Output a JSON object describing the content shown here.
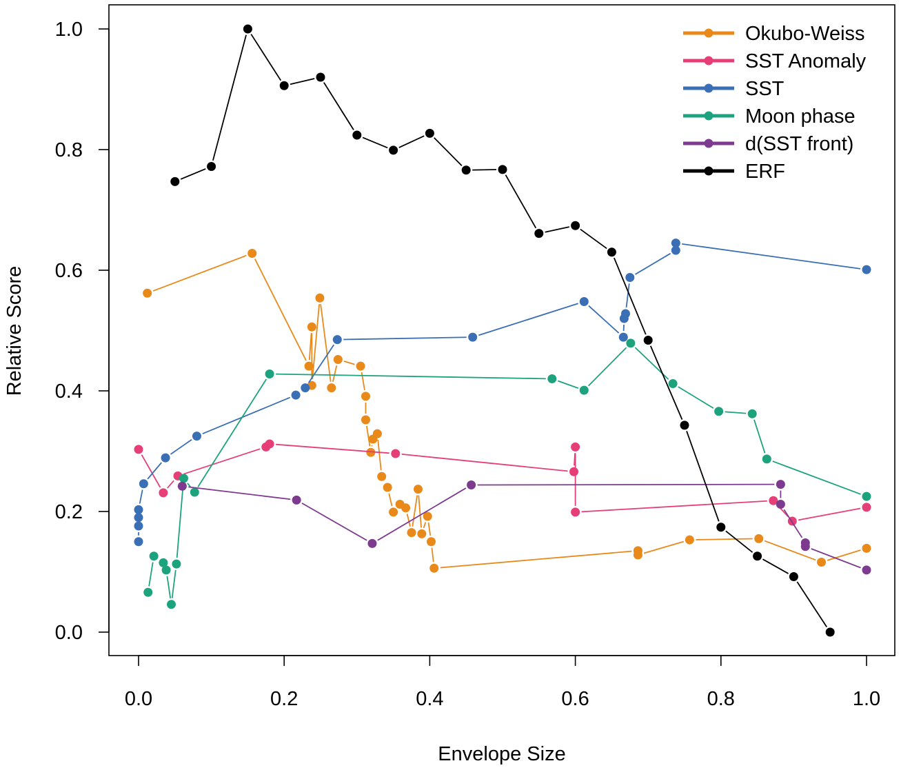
{
  "chart_data": {
    "type": "line",
    "title": "",
    "xlabel": "Envelope Size",
    "ylabel": "Relative Score",
    "xlim": [
      0.0,
      1.0
    ],
    "ylim": [
      0.0,
      1.0
    ],
    "xticks": [
      "0.0",
      "0.2",
      "0.4",
      "0.6",
      "0.8",
      "1.0"
    ],
    "yticks": [
      "0.0",
      "0.2",
      "0.4",
      "0.6",
      "0.8",
      "1.0"
    ],
    "legend_position": "top-right",
    "grid": false,
    "series": [
      {
        "name": "Okubo-Weiss",
        "color": "#E8891A",
        "points": [
          [
            0.012,
            0.562
          ],
          [
            0.156,
            0.628
          ],
          [
            0.234,
            0.441
          ],
          [
            0.238,
            0.506
          ],
          [
            0.238,
            0.409
          ],
          [
            0.249,
            0.554
          ],
          [
            0.265,
            0.405
          ],
          [
            0.274,
            0.452
          ],
          [
            0.305,
            0.441
          ],
          [
            0.312,
            0.391
          ],
          [
            0.312,
            0.352
          ],
          [
            0.319,
            0.298
          ],
          [
            0.322,
            0.32
          ],
          [
            0.328,
            0.329
          ],
          [
            0.334,
            0.258
          ],
          [
            0.342,
            0.24
          ],
          [
            0.35,
            0.199
          ],
          [
            0.359,
            0.212
          ],
          [
            0.367,
            0.206
          ],
          [
            0.375,
            0.165
          ],
          [
            0.384,
            0.237
          ],
          [
            0.389,
            0.163
          ],
          [
            0.397,
            0.192
          ],
          [
            0.402,
            0.15
          ],
          [
            0.406,
            0.106
          ],
          [
            0.686,
            0.135
          ],
          [
            0.686,
            0.128
          ],
          [
            0.757,
            0.153
          ],
          [
            0.852,
            0.155
          ],
          [
            0.938,
            0.116
          ],
          [
            1.0,
            0.139
          ]
        ]
      },
      {
        "name": "SST Anomaly",
        "color": "#E63E77",
        "points": [
          [
            0.0,
            0.303
          ],
          [
            0.034,
            0.231
          ],
          [
            0.054,
            0.259
          ],
          [
            0.175,
            0.307
          ],
          [
            0.18,
            0.312
          ],
          [
            0.353,
            0.296
          ],
          [
            0.598,
            0.266
          ],
          [
            0.6,
            0.307
          ],
          [
            0.6,
            0.199
          ],
          [
            0.872,
            0.218
          ],
          [
            0.898,
            0.184
          ],
          [
            1.0,
            0.207
          ]
        ]
      },
      {
        "name": "SST",
        "color": "#3A6EB5",
        "points": [
          [
            0.0,
            0.15
          ],
          [
            0.0,
            0.176
          ],
          [
            0.0,
            0.19
          ],
          [
            0.0,
            0.203
          ],
          [
            0.007,
            0.246
          ],
          [
            0.037,
            0.289
          ],
          [
            0.08,
            0.325
          ],
          [
            0.216,
            0.393
          ],
          [
            0.229,
            0.405
          ],
          [
            0.273,
            0.485
          ],
          [
            0.459,
            0.489
          ],
          [
            0.612,
            0.548
          ],
          [
            0.666,
            0.489
          ],
          [
            0.667,
            0.52
          ],
          [
            0.669,
            0.528
          ],
          [
            0.675,
            0.588
          ],
          [
            0.738,
            0.633
          ],
          [
            0.738,
            0.645
          ],
          [
            1.0,
            0.601
          ]
        ]
      },
      {
        "name": "Moon phase",
        "color": "#1CA37D",
        "points": [
          [
            0.013,
            0.066
          ],
          [
            0.021,
            0.126
          ],
          [
            0.034,
            0.115
          ],
          [
            0.038,
            0.103
          ],
          [
            0.045,
            0.046
          ],
          [
            0.052,
            0.113
          ],
          [
            0.062,
            0.255
          ],
          [
            0.077,
            0.232
          ],
          [
            0.18,
            0.428
          ],
          [
            0.568,
            0.42
          ],
          [
            0.612,
            0.401
          ],
          [
            0.676,
            0.479
          ],
          [
            0.734,
            0.412
          ],
          [
            0.797,
            0.366
          ],
          [
            0.843,
            0.362
          ],
          [
            0.863,
            0.287
          ],
          [
            1.0,
            0.225
          ]
        ]
      },
      {
        "name": "d(SST front)",
        "color": "#7D3A8F",
        "points": [
          [
            0.06,
            0.242
          ],
          [
            0.217,
            0.219
          ],
          [
            0.321,
            0.147
          ],
          [
            0.457,
            0.244
          ],
          [
            0.882,
            0.245
          ],
          [
            0.882,
            0.212
          ],
          [
            0.916,
            0.148
          ],
          [
            0.916,
            0.142
          ],
          [
            1.0,
            0.103
          ]
        ]
      },
      {
        "name": "ERF",
        "color": "#000000",
        "points": [
          [
            0.05,
            0.747
          ],
          [
            0.1,
            0.772
          ],
          [
            0.15,
            1.0
          ],
          [
            0.2,
            0.906
          ],
          [
            0.25,
            0.92
          ],
          [
            0.3,
            0.824
          ],
          [
            0.35,
            0.799
          ],
          [
            0.4,
            0.827
          ],
          [
            0.45,
            0.766
          ],
          [
            0.5,
            0.767
          ],
          [
            0.55,
            0.661
          ],
          [
            0.6,
            0.674
          ],
          [
            0.65,
            0.63
          ],
          [
            0.7,
            0.484
          ],
          [
            0.75,
            0.343
          ],
          [
            0.8,
            0.174
          ],
          [
            0.85,
            0.126
          ],
          [
            0.9,
            0.092
          ],
          [
            0.95,
            0.0
          ]
        ]
      }
    ]
  }
}
